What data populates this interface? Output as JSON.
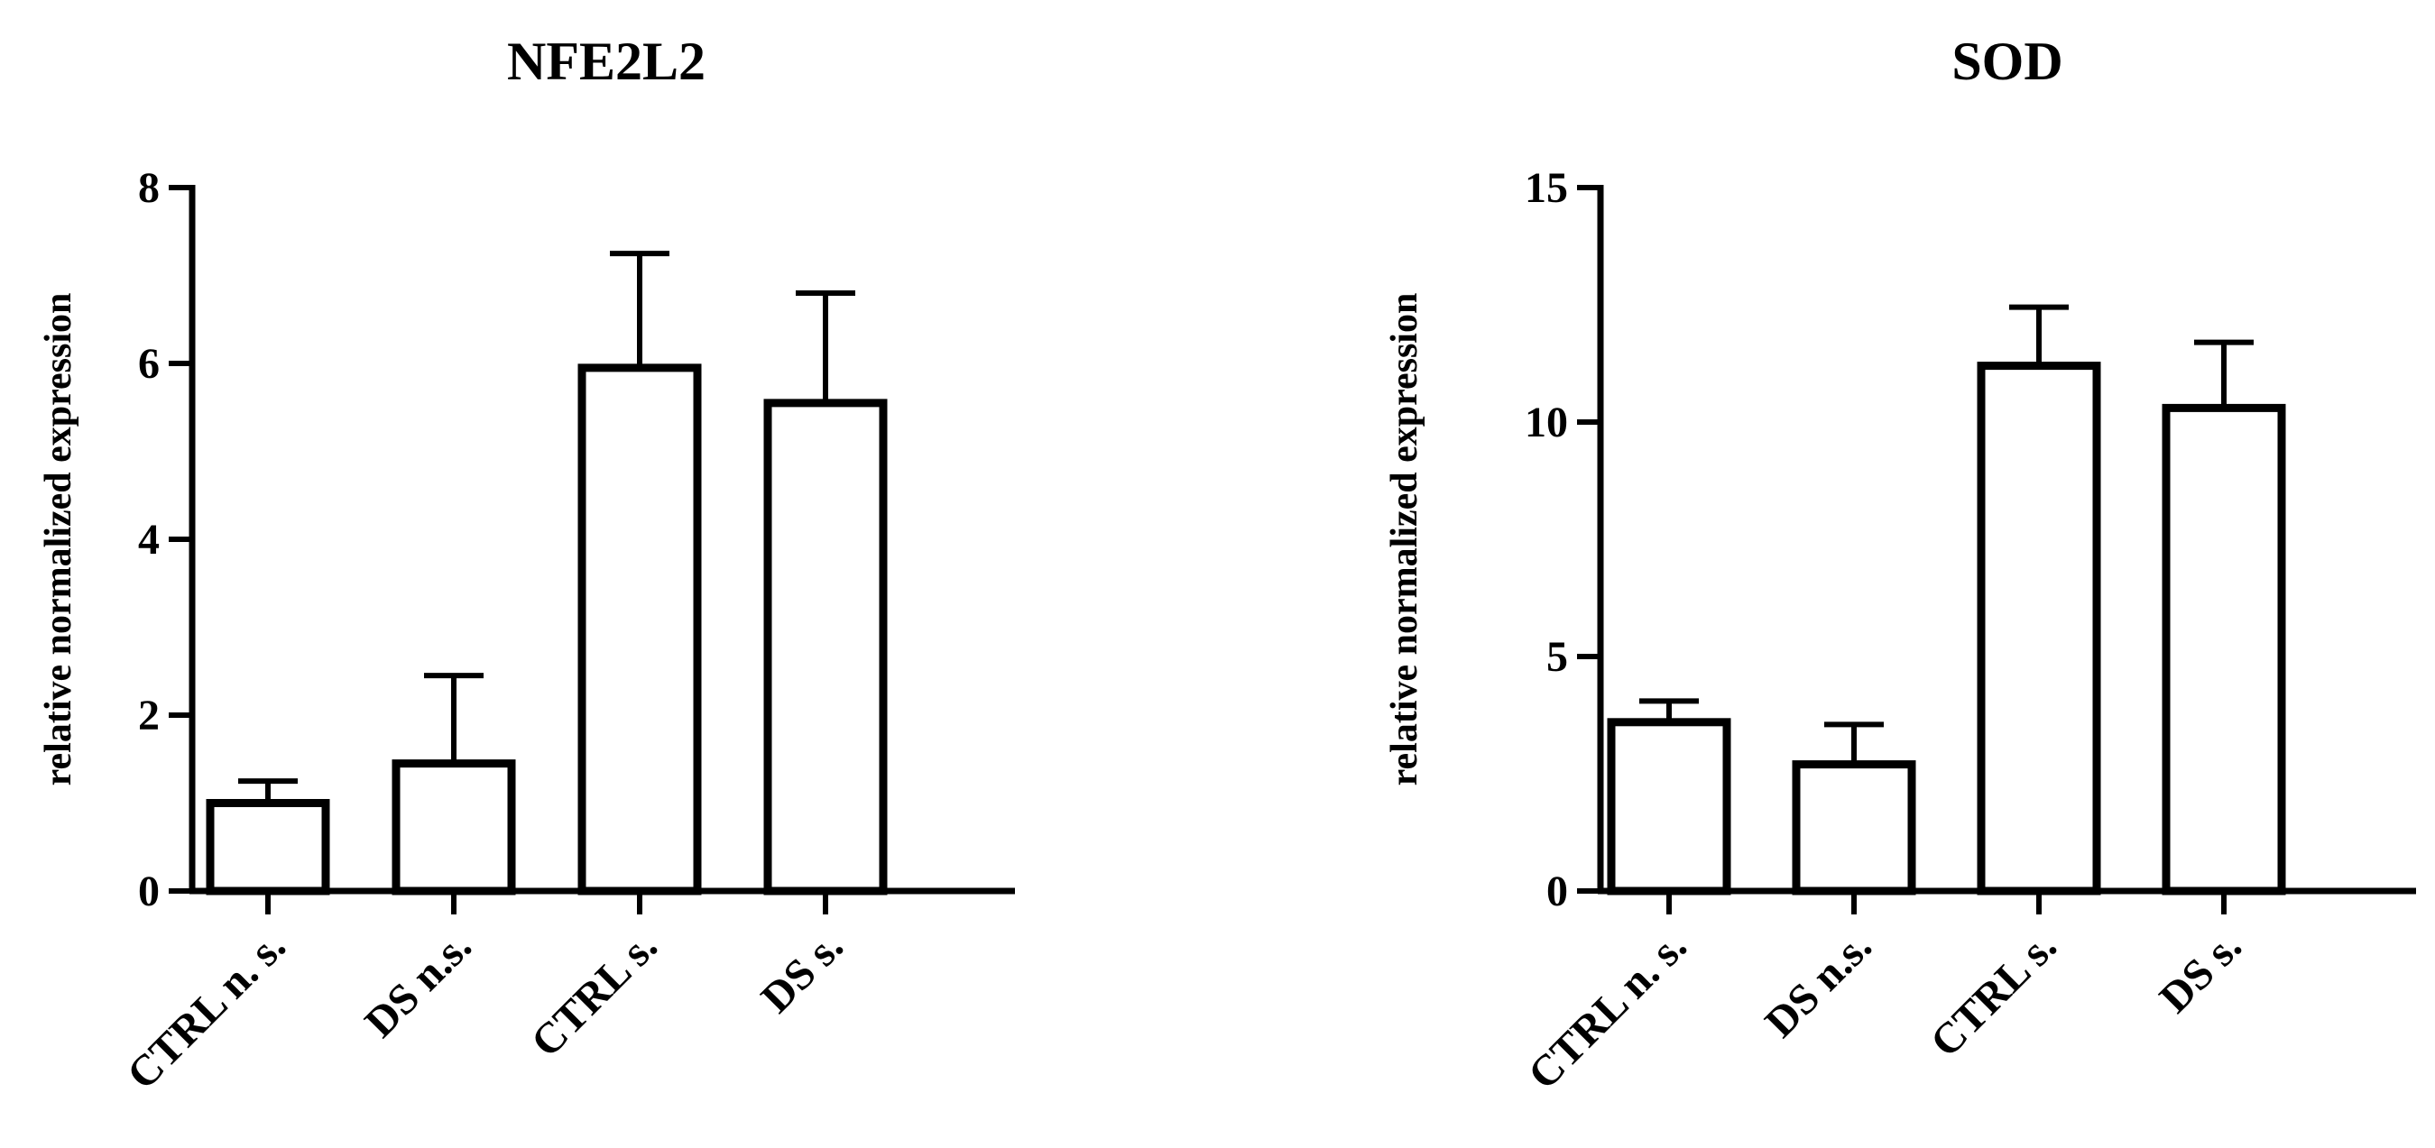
{
  "chart_data": [
    {
      "type": "bar",
      "title": "NFE2L2",
      "ylabel": "relative normalized expression",
      "xlabel": "",
      "categories": [
        "CTRL n. s.",
        "DS n.s.",
        "CTRL s.",
        "DS s."
      ],
      "values": [
        1.0,
        1.45,
        5.95,
        5.55
      ],
      "error_upper": [
        1.25,
        2.45,
        7.25,
        6.8
      ],
      "ylim": [
        0,
        8
      ],
      "yticks": [
        0,
        2,
        4,
        6,
        8
      ],
      "grid": false,
      "bar_fill": "#ffffff",
      "bar_edge": "#000000"
    },
    {
      "type": "bar",
      "title": "SOD",
      "ylabel": "relative normalized expression",
      "xlabel": "",
      "categories": [
        "CTRL n. s.",
        "DS n.s.",
        "CTRL s.",
        "DS s."
      ],
      "values": [
        3.6,
        2.7,
        11.2,
        10.3
      ],
      "error_upper": [
        4.05,
        3.55,
        12.45,
        11.7
      ],
      "ylim": [
        0,
        15
      ],
      "yticks": [
        0,
        5,
        10,
        15
      ],
      "grid": false,
      "bar_fill": "#ffffff",
      "bar_edge": "#000000"
    }
  ]
}
